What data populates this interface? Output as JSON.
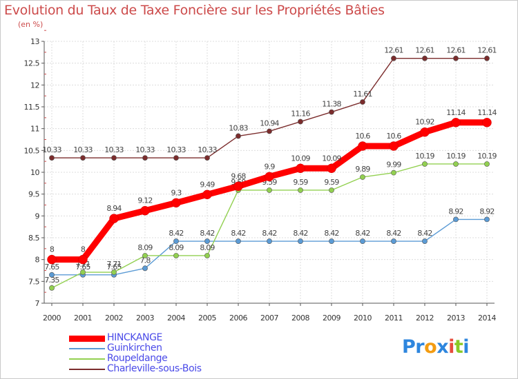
{
  "chart_data": {
    "type": "line",
    "title": "Evolution du Taux de Taxe Foncière sur les Propriétés Bâties",
    "ylabel": "(en %)",
    "xlabel": "",
    "x": [
      "2000",
      "2001",
      "2002",
      "2003",
      "2004",
      "2005",
      "2006",
      "2007",
      "2008",
      "2009",
      "2010",
      "2011",
      "2012",
      "2013",
      "2014"
    ],
    "ylim": [
      7,
      13
    ],
    "yticks": [
      "7",
      "7.5",
      "8",
      "8.5",
      "9",
      "9.5",
      "10",
      "10.5",
      "11",
      "11.5",
      "12",
      "12.5",
      "13"
    ],
    "grid": true,
    "series": [
      {
        "name": "HINCKANGE",
        "color": "#ff0000",
        "values": [
          8,
          8,
          8.94,
          9.12,
          9.3,
          9.49,
          9.68,
          9.9,
          10.09,
          10.09,
          10.6,
          10.6,
          10.92,
          11.14,
          11.14
        ],
        "labels": [
          "8",
          "8",
          "8.94",
          "9.12",
          "9.3",
          "9.49",
          "9.68",
          "9.9",
          "10.09",
          "10.09",
          "10.6",
          "10.6",
          "10.92",
          "11.14",
          "11.14"
        ]
      },
      {
        "name": "Guinkirchen",
        "color": "#5b9bd5",
        "values": [
          7.65,
          7.65,
          7.65,
          7.8,
          8.42,
          8.42,
          8.42,
          8.42,
          8.42,
          8.42,
          8.42,
          8.42,
          8.42,
          8.92,
          8.92
        ],
        "labels": [
          "7.65",
          "7.65",
          "7.65",
          "7.8",
          "8.42",
          "8.42",
          "8.42",
          "8.42",
          "8.42",
          "8.42",
          "8.42",
          "8.42",
          "8.42",
          "8.92",
          "8.92"
        ]
      },
      {
        "name": "Roupeldange",
        "color": "#92d050",
        "values": [
          7.35,
          7.71,
          7.71,
          8.09,
          8.09,
          8.09,
          9.59,
          9.59,
          9.59,
          9.59,
          9.89,
          9.99,
          10.19,
          10.19,
          10.19
        ],
        "labels": [
          "7.35",
          "7.71",
          "7.71",
          "8.09",
          "8.09",
          "8.09",
          "9.59",
          "9.59",
          "9.59",
          "9.59",
          "9.89",
          "9.99",
          "10.19",
          "10.19",
          "10.19"
        ]
      },
      {
        "name": "Charleville-sous-Bois",
        "color": "#7b2c2c",
        "values": [
          10.33,
          10.33,
          10.33,
          10.33,
          10.33,
          10.33,
          10.83,
          10.94,
          11.16,
          11.38,
          11.61,
          12.61,
          12.61,
          12.61,
          12.61
        ],
        "labels": [
          "10.33",
          "10.33",
          "10.33",
          "10.33",
          "10.33",
          "10.33",
          "10.83",
          "10.94",
          "11.16",
          "11.38",
          "11.61",
          "12.61",
          "12.61",
          "12.61",
          "12.61"
        ]
      }
    ]
  },
  "logo": {
    "text": "Proxiti",
    "letters": [
      "P",
      "r",
      "o",
      "x",
      "i",
      "t",
      "i"
    ],
    "colors": [
      "#2e86de",
      "#2e86de",
      "#f39c12",
      "#2e86de",
      "#e74c3c",
      "#8ac926",
      "#2e86de"
    ]
  }
}
